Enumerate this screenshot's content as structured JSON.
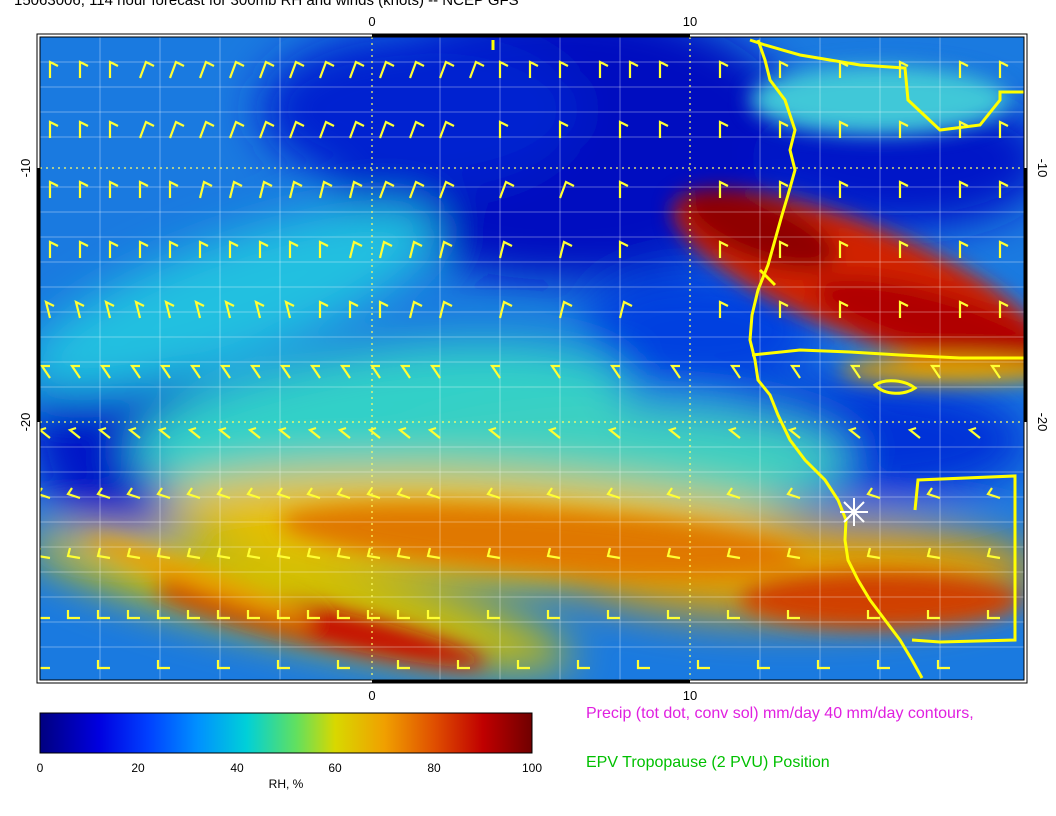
{
  "title": "15063006, 114 hour forecast for 300mb RH and winds (knots) -- NCEP GFS",
  "axes": {
    "x_ticks": [
      "0",
      "10"
    ],
    "y_ticks": [
      "-10",
      "-20"
    ]
  },
  "colorbar": {
    "ticks": [
      "0",
      "20",
      "40",
      "60",
      "80",
      "100"
    ],
    "label": "RH, %",
    "range": [
      0,
      100
    ]
  },
  "legend": {
    "precip": "Precip (tot dot, conv sol) mm/day 40 mm/day contours,",
    "epv": "EPV Tropopause (2 PVU) Position"
  },
  "colors": {
    "barb": "#ffff33",
    "coast": "#ffff00",
    "grid": "#ffffff",
    "marker": "#ffffff"
  },
  "chart_data": {
    "type": "heatmap",
    "variable": "RH",
    "units": "%",
    "vmin": 0,
    "vmax": 100,
    "features": [
      {
        "region": "northeast moist band",
        "rh": 95
      },
      {
        "region": "southern moist band",
        "rh": 80
      },
      {
        "region": "central dry region",
        "rh": 10
      }
    ]
  }
}
